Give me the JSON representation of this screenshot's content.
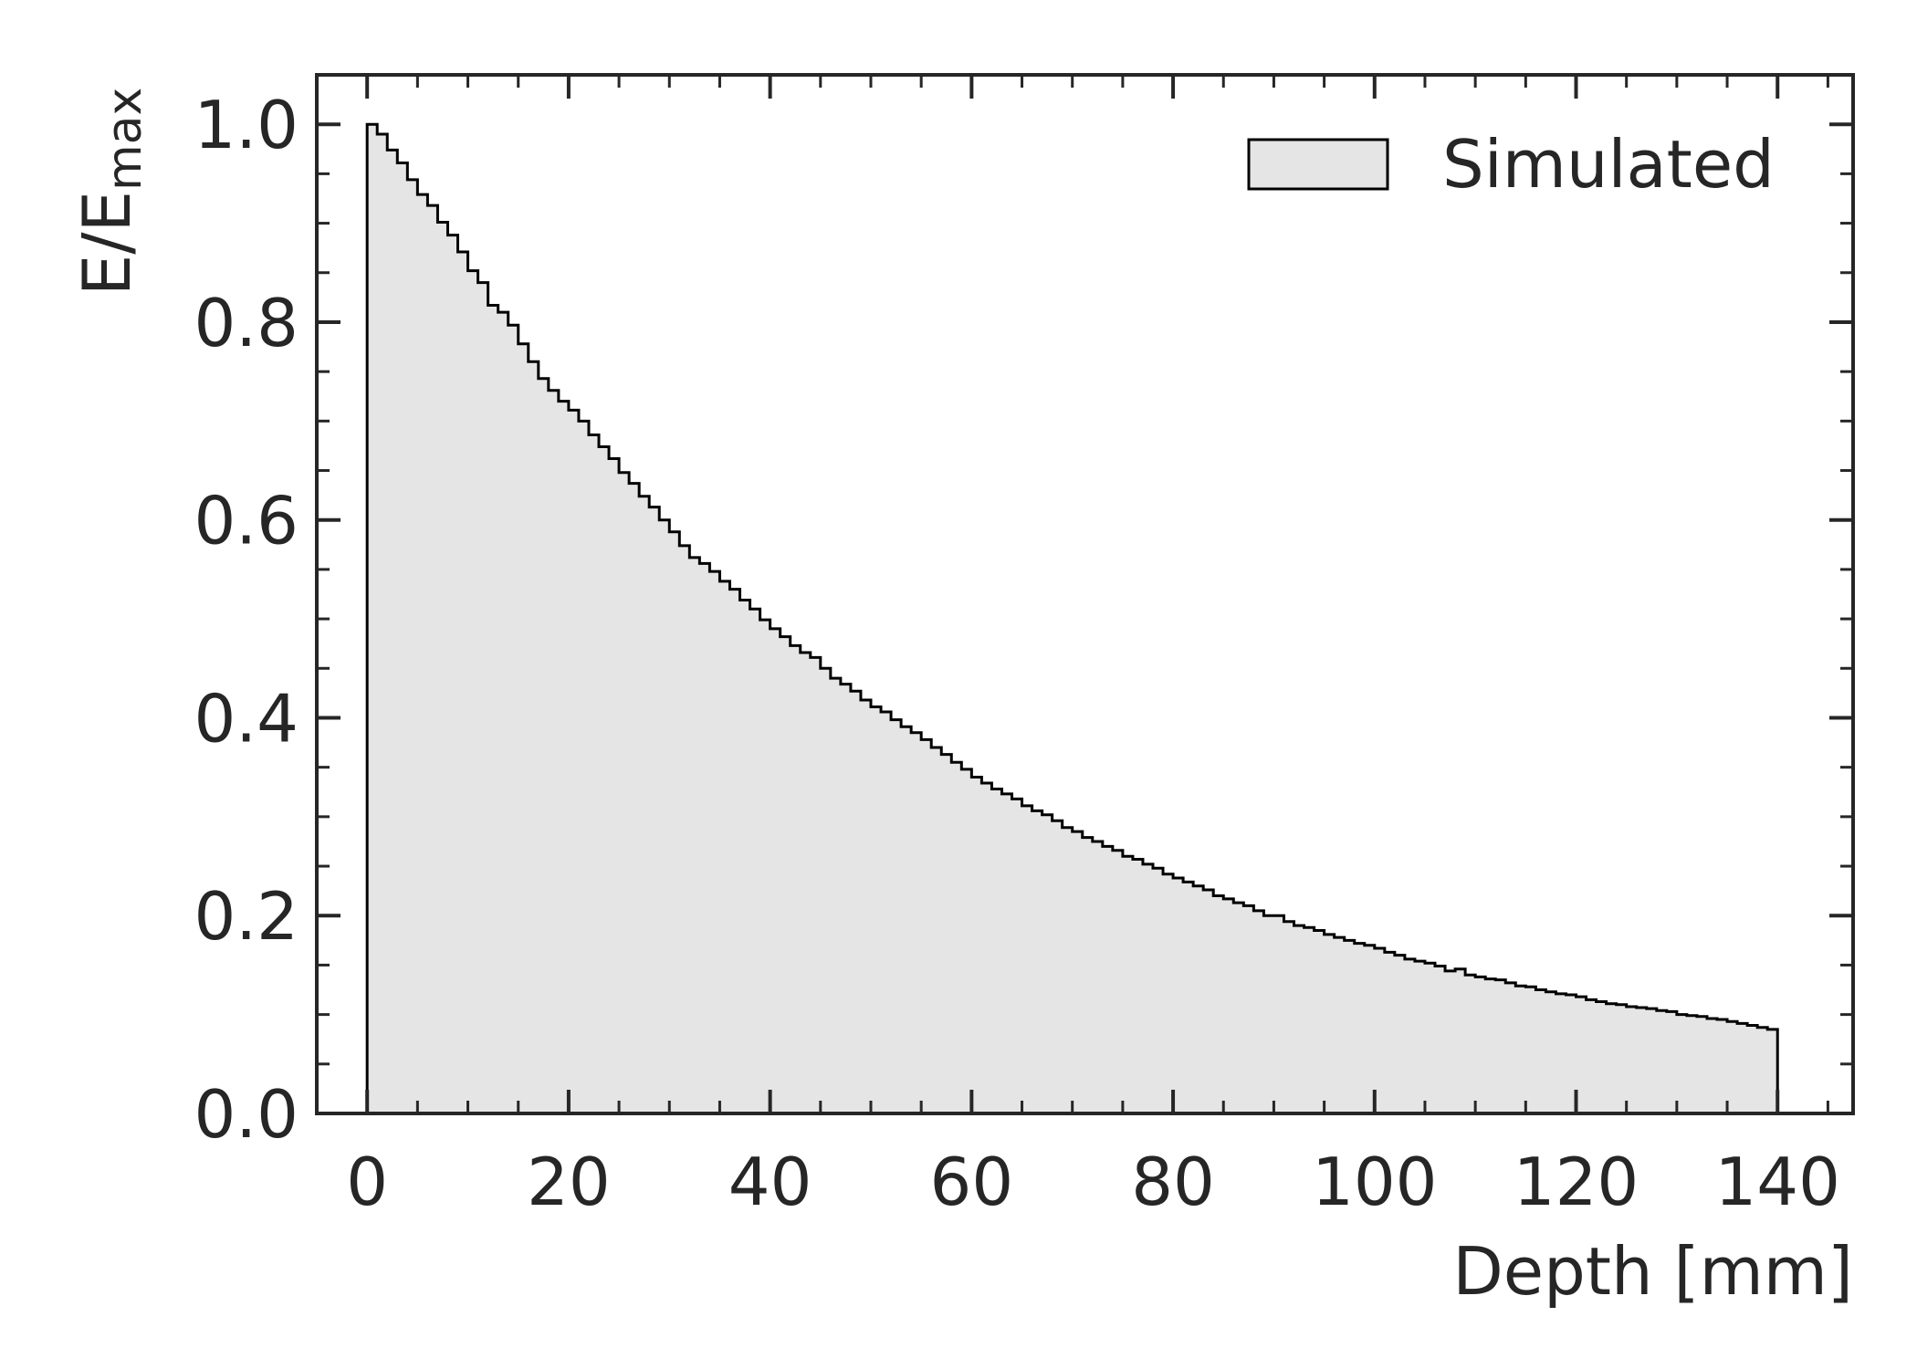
{
  "chart_data": {
    "type": "area",
    "subtype": "step-histogram",
    "title": "",
    "xlabel": "Depth [mm]",
    "ylabel": "E/E",
    "ylabel_subscript": "max",
    "xlim": [
      -5,
      147.5
    ],
    "ylim": [
      0,
      1.05
    ],
    "xticks": [
      0,
      20,
      40,
      60,
      80,
      100,
      120,
      140
    ],
    "xtick_labels": [
      "0",
      "20",
      "40",
      "60",
      "80",
      "100",
      "120",
      "140"
    ],
    "yticks": [
      0.0,
      0.2,
      0.4,
      0.6,
      0.8,
      1.0
    ],
    "ytick_labels": [
      "0.0",
      "0.2",
      "0.4",
      "0.6",
      "0.8",
      "1.0"
    ],
    "x_minor_step": 5,
    "y_minor_step": 0.05,
    "grid": false,
    "tick_direction": "in",
    "ticks_on_all_sides": true,
    "legend_position": "top-right",
    "fill_color": "#e5e5e5",
    "edge_color": "#000000",
    "axis_color": "#262626",
    "series": [
      {
        "name": "Simulated",
        "bin_width": 1,
        "x_start": 0,
        "x_end": 140,
        "values": [
          1.0,
          0.99,
          0.974,
          0.961,
          0.944,
          0.929,
          0.918,
          0.901,
          0.888,
          0.871,
          0.852,
          0.84,
          0.817,
          0.81,
          0.797,
          0.778,
          0.76,
          0.743,
          0.731,
          0.72,
          0.711,
          0.7,
          0.686,
          0.674,
          0.662,
          0.648,
          0.637,
          0.624,
          0.613,
          0.6,
          0.588,
          0.574,
          0.562,
          0.556,
          0.548,
          0.538,
          0.53,
          0.519,
          0.51,
          0.499,
          0.49,
          0.482,
          0.473,
          0.466,
          0.461,
          0.45,
          0.44,
          0.434,
          0.427,
          0.418,
          0.411,
          0.406,
          0.398,
          0.391,
          0.385,
          0.378,
          0.37,
          0.363,
          0.355,
          0.348,
          0.34,
          0.334,
          0.328,
          0.323,
          0.318,
          0.311,
          0.306,
          0.302,
          0.296,
          0.289,
          0.285,
          0.279,
          0.275,
          0.27,
          0.266,
          0.26,
          0.257,
          0.252,
          0.248,
          0.242,
          0.238,
          0.234,
          0.23,
          0.226,
          0.22,
          0.217,
          0.213,
          0.21,
          0.205,
          0.2,
          0.2,
          0.194,
          0.19,
          0.188,
          0.185,
          0.181,
          0.178,
          0.175,
          0.172,
          0.17,
          0.167,
          0.163,
          0.16,
          0.156,
          0.154,
          0.152,
          0.149,
          0.144,
          0.146,
          0.14,
          0.138,
          0.136,
          0.135,
          0.132,
          0.129,
          0.128,
          0.125,
          0.123,
          0.121,
          0.12,
          0.118,
          0.115,
          0.113,
          0.111,
          0.11,
          0.108,
          0.107,
          0.106,
          0.104,
          0.103,
          0.1,
          0.099,
          0.098,
          0.096,
          0.095,
          0.093,
          0.091,
          0.089,
          0.087,
          0.085
        ]
      }
    ]
  }
}
